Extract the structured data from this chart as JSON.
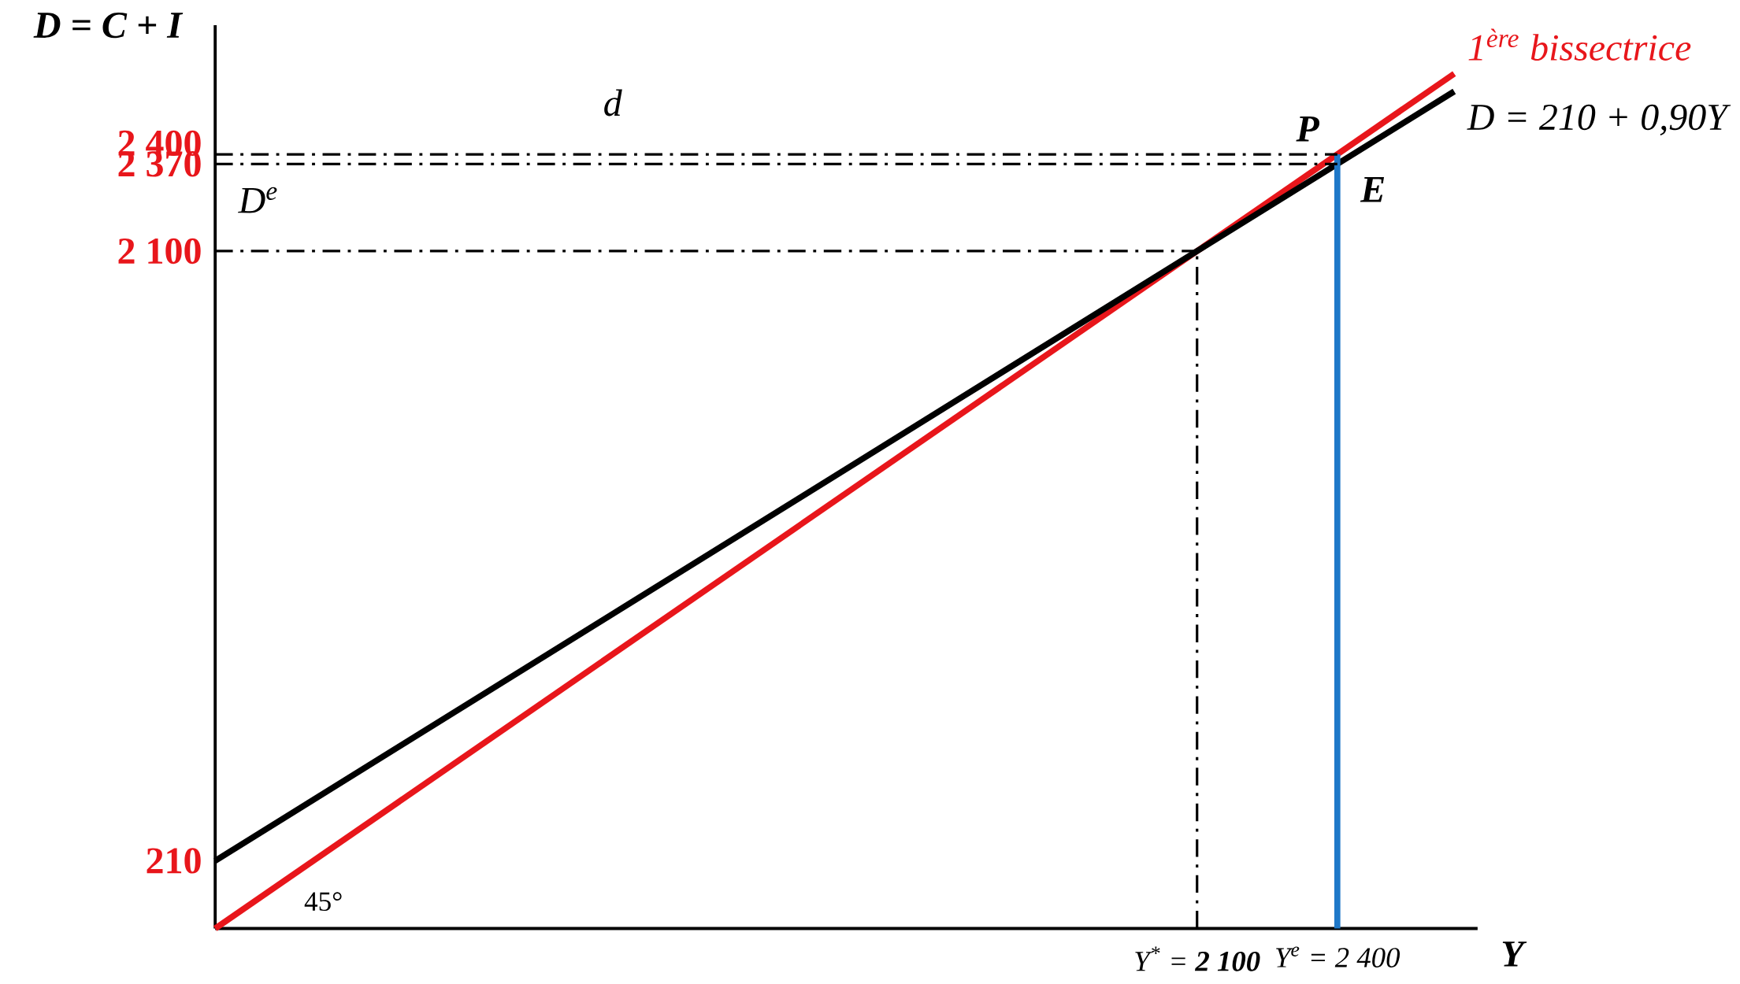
{
  "chart_data": {
    "type": "line",
    "xlabel": "Y",
    "ylabel": "D = C + I",
    "xlim": [
      0,
      2700
    ],
    "ylim": [
      0,
      2800
    ],
    "grid": false,
    "marker": "none",
    "xticks": [
      {
        "value": 2100,
        "label": "Y$^{*}$ = **2 100**"
      },
      {
        "value": 2400,
        "label": "Y$^{e}$ = 2 400"
      }
    ],
    "yticks": [
      {
        "value": 210,
        "label": "210"
      },
      {
        "value": 2100,
        "label": "2 100"
      },
      {
        "value": 2370,
        "label": "2 370"
      },
      {
        "value": 2400,
        "label": "2 400"
      }
    ],
    "series": [
      {
        "name": "1$^{ère}$ bissectrice",
        "color": "#e8161b",
        "x": [
          0,
          2650
        ],
        "values": [
          0,
          2650
        ]
      },
      {
        "name": "D = 210 + 0,90Y",
        "color": "#000000",
        "x": [
          0,
          2650
        ],
        "values": [
          210,
          2595
        ]
      },
      {
        "color": "#1f78c8",
        "x": [
          2400,
          2400
        ],
        "values": [
          0,
          2400
        ]
      },
      {
        "color": "#000000",
        "x": [
          0,
          2400
        ],
        "values": [
          2400,
          2400
        ],
        "line_style": "dashed"
      },
      {
        "color": "#000000",
        "x": [
          0,
          2400
        ],
        "values": [
          2370,
          2370
        ],
        "line_style": "dashed"
      },
      {
        "color": "#000000",
        "x": [
          0,
          2100
        ],
        "values": [
          2100,
          2100
        ],
        "line_style": "dashed"
      },
      {
        "color": "#000000",
        "x": [
          2100,
          2100
        ],
        "values": [
          0,
          2100
        ],
        "line_style": "dashed"
      }
    ],
    "annotations": [
      {
        "text": "P",
        "x": 2400,
        "y": 2400
      },
      {
        "text": "E",
        "x": 2400,
        "y": 2370
      },
      {
        "text": "d",
        "x": 850,
        "y": 2400
      },
      {
        "text": "D$^{e}$",
        "x": 0,
        "y": 2370
      },
      "45°"
    ]
  }
}
